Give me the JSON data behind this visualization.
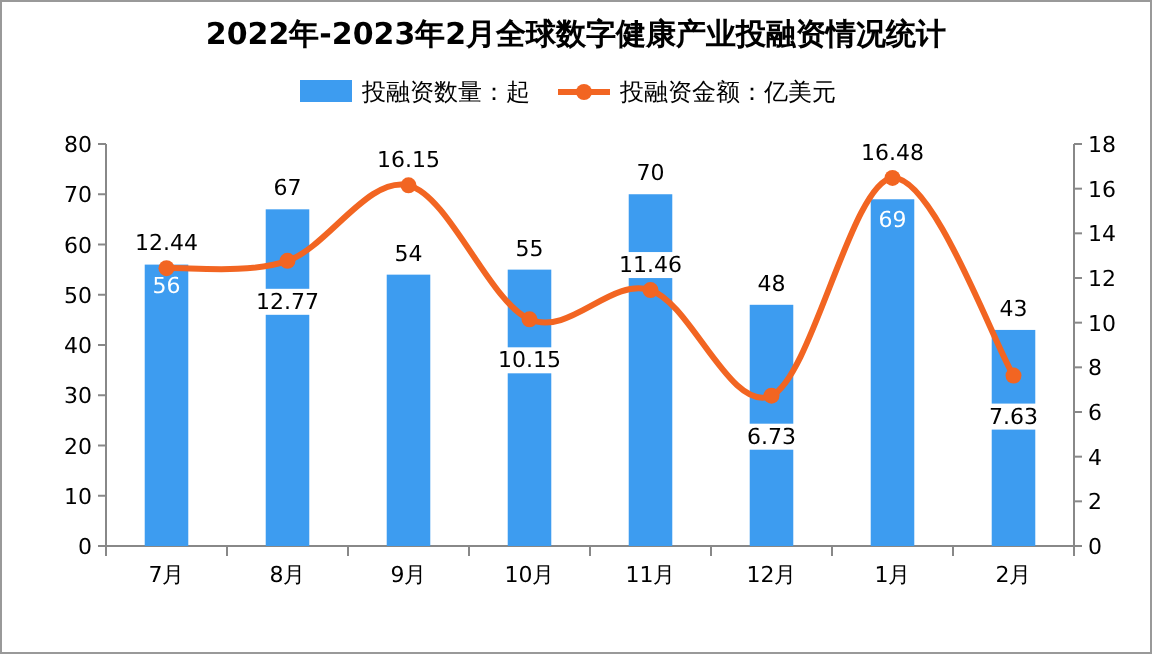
{
  "chart_data": {
    "type": "bar",
    "title": "2022年-2023年2月全球数字健康产业投融资情况统计",
    "categories": [
      "7月",
      "8月",
      "9月",
      "10月",
      "11月",
      "12月",
      "1月",
      "2月"
    ],
    "series": [
      {
        "name": "投融资数量：起",
        "color": "#3d9cf0",
        "values": [
          56,
          67,
          54,
          55,
          70,
          48,
          69,
          43
        ]
      },
      {
        "name": "投融资金额：亿美元",
        "type": "line",
        "axis": "y2",
        "color": "#f26522",
        "marker": "circle",
        "values": [
          12.44,
          12.77,
          16.15,
          10.15,
          11.46,
          6.73,
          16.48,
          7.63
        ]
      }
    ],
    "ylim": [
      0,
      80
    ],
    "yticks": [
      0,
      10,
      20,
      30,
      40,
      50,
      60,
      70,
      80
    ],
    "y2lim": [
      0,
      18
    ],
    "y2ticks": [
      0,
      2,
      4,
      6,
      8,
      10,
      12,
      14,
      16,
      18
    ],
    "data_labels": true,
    "legend": "top",
    "grid": false
  }
}
